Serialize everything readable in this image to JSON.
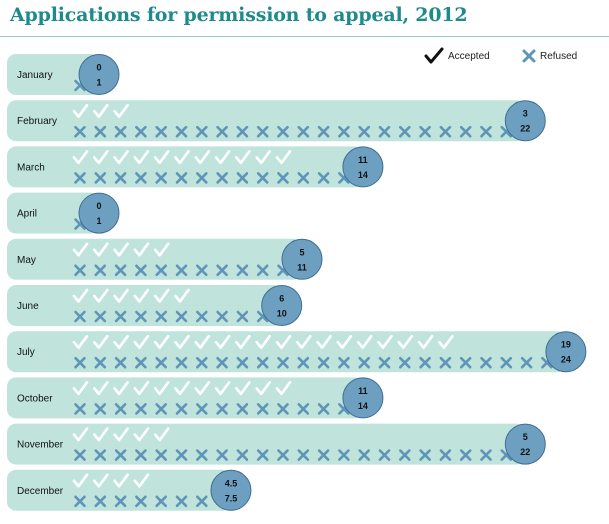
{
  "title": "Applications for permission to appeal, 2012",
  "legend": {
    "accepted": "Accepted",
    "refused": "Refused",
    "accepted_icon": "check-icon",
    "refused_icon": "cross-icon"
  },
  "colors": {
    "title": "#1e8a8c",
    "bar": "#c0e4dc",
    "circle": "#6d9fc0",
    "circle_stroke": "#3f6f93",
    "check": "#ffffff",
    "cross": "#5f95b8"
  },
  "chart_data": {
    "type": "bar",
    "title": "Applications for permission to appeal, 2012",
    "categories": [
      "January",
      "February",
      "March",
      "April",
      "May",
      "June",
      "July",
      "October",
      "November",
      "December"
    ],
    "series": [
      {
        "name": "Accepted",
        "values": [
          0,
          3,
          11,
          0,
          5,
          6,
          19,
          11,
          5,
          4.5
        ]
      },
      {
        "name": "Refused",
        "values": [
          1,
          22,
          14,
          1,
          11,
          10,
          24,
          14,
          22,
          7.5
        ]
      }
    ],
    "value_labels": {
      "accepted": [
        "0",
        "3",
        "11",
        "0",
        "5",
        "6",
        "19",
        "11",
        "5",
        "4.5"
      ],
      "refused": [
        "1",
        "22",
        "14",
        "1",
        "11",
        "10",
        "24",
        "14",
        "22",
        "7.5"
      ]
    },
    "legend_position": "top-right",
    "grid": false
  }
}
